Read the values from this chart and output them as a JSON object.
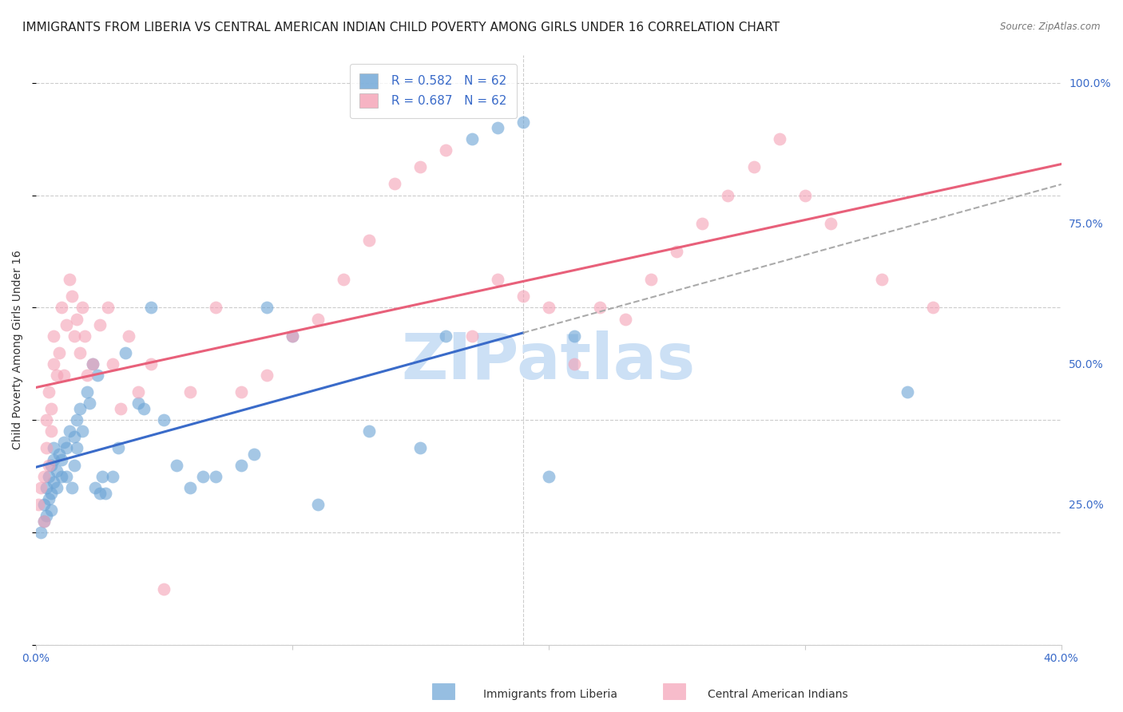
{
  "title": "IMMIGRANTS FROM LIBERIA VS CENTRAL AMERICAN INDIAN CHILD POVERTY AMONG GIRLS UNDER 16 CORRELATION CHART",
  "source": "Source: ZipAtlas.com",
  "ylabel": "Child Poverty Among Girls Under 16",
  "blue_R": 0.582,
  "blue_N": 62,
  "pink_R": 0.687,
  "pink_N": 62,
  "blue_color": "#6aa3d5",
  "pink_color": "#f4a0b5",
  "blue_line_color": "#3a6bc9",
  "pink_line_color": "#e8607a",
  "gray_dash_color": "#aaaaaa",
  "legend_label_blue": "Immigrants from Liberia",
  "legend_label_pink": "Central American Indians",
  "watermark": "ZIPatlas",
  "watermark_color": "#cce0f5",
  "blue_scatter_x": [
    0.002,
    0.003,
    0.003,
    0.004,
    0.004,
    0.005,
    0.005,
    0.006,
    0.006,
    0.006,
    0.007,
    0.007,
    0.007,
    0.008,
    0.008,
    0.009,
    0.01,
    0.01,
    0.011,
    0.012,
    0.012,
    0.013,
    0.014,
    0.015,
    0.015,
    0.016,
    0.016,
    0.017,
    0.018,
    0.02,
    0.021,
    0.022,
    0.023,
    0.024,
    0.025,
    0.026,
    0.027,
    0.03,
    0.032,
    0.035,
    0.04,
    0.042,
    0.045,
    0.05,
    0.055,
    0.06,
    0.065,
    0.07,
    0.08,
    0.085,
    0.09,
    0.1,
    0.11,
    0.13,
    0.15,
    0.16,
    0.17,
    0.18,
    0.19,
    0.2,
    0.21,
    0.34
  ],
  "blue_scatter_y": [
    0.2,
    0.22,
    0.25,
    0.28,
    0.23,
    0.3,
    0.26,
    0.32,
    0.27,
    0.24,
    0.33,
    0.29,
    0.35,
    0.31,
    0.28,
    0.34,
    0.33,
    0.3,
    0.36,
    0.35,
    0.3,
    0.38,
    0.28,
    0.32,
    0.37,
    0.4,
    0.35,
    0.42,
    0.38,
    0.45,
    0.43,
    0.5,
    0.28,
    0.48,
    0.27,
    0.3,
    0.27,
    0.3,
    0.35,
    0.52,
    0.43,
    0.42,
    0.6,
    0.4,
    0.32,
    0.28,
    0.3,
    0.3,
    0.32,
    0.34,
    0.6,
    0.55,
    0.25,
    0.38,
    0.35,
    0.55,
    0.9,
    0.92,
    0.93,
    0.3,
    0.55,
    0.45
  ],
  "pink_scatter_x": [
    0.001,
    0.002,
    0.003,
    0.003,
    0.004,
    0.004,
    0.005,
    0.005,
    0.006,
    0.006,
    0.007,
    0.007,
    0.008,
    0.009,
    0.01,
    0.011,
    0.012,
    0.013,
    0.014,
    0.015,
    0.016,
    0.017,
    0.018,
    0.019,
    0.02,
    0.022,
    0.025,
    0.028,
    0.03,
    0.033,
    0.036,
    0.04,
    0.045,
    0.05,
    0.06,
    0.07,
    0.08,
    0.09,
    0.1,
    0.11,
    0.12,
    0.13,
    0.14,
    0.15,
    0.16,
    0.17,
    0.18,
    0.19,
    0.2,
    0.21,
    0.22,
    0.23,
    0.24,
    0.25,
    0.26,
    0.27,
    0.28,
    0.29,
    0.3,
    0.31,
    0.33,
    0.35
  ],
  "pink_scatter_y": [
    0.25,
    0.28,
    0.3,
    0.22,
    0.35,
    0.4,
    0.45,
    0.32,
    0.42,
    0.38,
    0.5,
    0.55,
    0.48,
    0.52,
    0.6,
    0.48,
    0.57,
    0.65,
    0.62,
    0.55,
    0.58,
    0.52,
    0.6,
    0.55,
    0.48,
    0.5,
    0.57,
    0.6,
    0.5,
    0.42,
    0.55,
    0.45,
    0.5,
    0.1,
    0.45,
    0.6,
    0.45,
    0.48,
    0.55,
    0.58,
    0.65,
    0.72,
    0.82,
    0.85,
    0.88,
    0.55,
    0.65,
    0.62,
    0.6,
    0.5,
    0.6,
    0.58,
    0.65,
    0.7,
    0.75,
    0.8,
    0.85,
    0.9,
    0.8,
    0.75,
    0.65,
    0.6
  ],
  "xlim": [
    0.0,
    0.4
  ],
  "ylim": [
    0.0,
    1.05
  ],
  "bg_color": "#ffffff",
  "grid_color": "#cccccc",
  "axis_label_color": "#3a6bc9",
  "title_fontsize": 11,
  "label_fontsize": 10,
  "tick_fontsize": 9,
  "legend_fontsize": 11
}
